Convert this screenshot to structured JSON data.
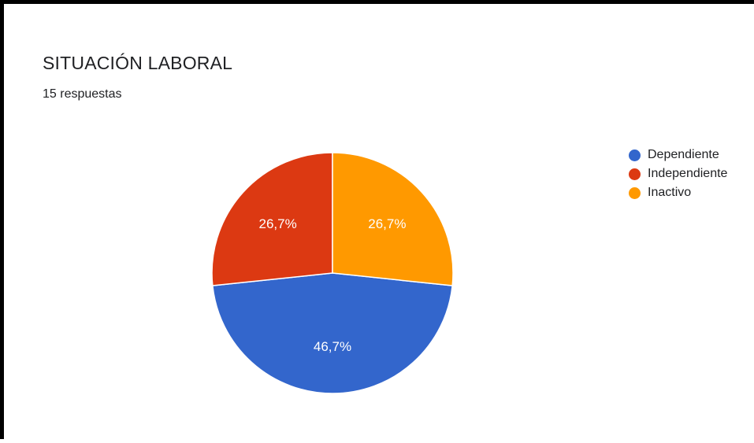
{
  "header": {
    "title": "SITUACIÓN LABORAL",
    "subtitle": "15 respuestas"
  },
  "chart_data": {
    "type": "pie",
    "title": "SITUACIÓN LABORAL",
    "subtitle": "15 respuestas",
    "legend_position": "right",
    "slices": [
      {
        "label": "Dependiente",
        "value": 46.7,
        "display": "46,7%",
        "color": "#3366cc"
      },
      {
        "label": "Independiente",
        "value": 26.7,
        "display": "26,7%",
        "color": "#dc3912"
      },
      {
        "label": "Inactivo",
        "value": 26.7,
        "display": "26,7%",
        "color": "#ff9900"
      }
    ]
  }
}
